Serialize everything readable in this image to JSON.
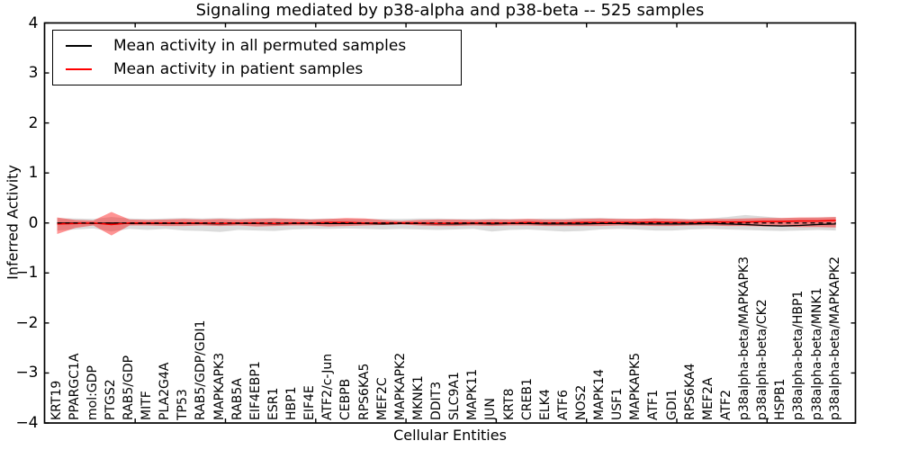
{
  "chart_data": {
    "type": "line",
    "title": "Signaling mediated by p38-alpha and p38-beta -- 525 samples",
    "xlabel": "Cellular Entities",
    "ylabel": "Inferred Activity",
    "ylim": [
      -4,
      4
    ],
    "ytick_values": [
      4,
      3,
      2,
      1,
      0,
      -1,
      -2,
      -3,
      -4
    ],
    "grid": false,
    "legend_position": "upper left",
    "legend": [
      {
        "label": "Mean activity in all permuted samples",
        "color": "#000000"
      },
      {
        "label": "Mean activity in patient samples",
        "color": "#ff0000"
      }
    ],
    "categories": [
      "KRT19",
      "PPARGC1A",
      "mol:GDP",
      "PTGS2",
      "RAB5/GDP",
      "MITF",
      "PLA2G4A",
      "TP53",
      "RAB5/GDP/GDI1",
      "MAPKAPK3",
      "RAB5A",
      "EIF4EBP1",
      "ESR1",
      "HBP1",
      "EIF4E",
      "ATF2/c-Jun",
      "CEBPB",
      "RPS6KA5",
      "MEF2C",
      "MAPKAPK2",
      "MKNK1",
      "DDIT3",
      "SLC9A1",
      "MAPK11",
      "JUN",
      "KRT8",
      "CREB1",
      "ELK4",
      "ATF6",
      "NOS2",
      "MAPK14",
      "USF1",
      "MAPKAPK5",
      "ATF1",
      "GDI1",
      "RPS6KA4",
      "MEF2A",
      "ATF2",
      "p38alpha-beta/MAPKAPK3",
      "p38alpha-beta/CK2",
      "HSPB1",
      "p38alpha-beta/HBP1",
      "p38alpha-beta/MNK1",
      "p38alpha-beta/MAPKAPK2"
    ],
    "bands": [
      {
        "name": "permuted-std-band",
        "color": "#888888",
        "opacity": 0.3,
        "upper": [
          0.1,
          0.09,
          0.08,
          0.12,
          0.09,
          0.08,
          0.09,
          0.1,
          0.09,
          0.1,
          0.09,
          0.1,
          0.1,
          0.09,
          0.08,
          0.09,
          0.08,
          0.08,
          0.08,
          0.08,
          0.09,
          0.09,
          0.08,
          0.08,
          0.09,
          0.08,
          0.08,
          0.09,
          0.09,
          0.1,
          0.1,
          0.09,
          0.08,
          0.09,
          0.09,
          0.08,
          0.09,
          0.12,
          0.16,
          0.13,
          0.1,
          0.1,
          0.11,
          0.12
        ],
        "lower": [
          -0.15,
          -0.13,
          -0.11,
          -0.17,
          -0.12,
          -0.14,
          -0.12,
          -0.15,
          -0.16,
          -0.18,
          -0.14,
          -0.15,
          -0.16,
          -0.13,
          -0.12,
          -0.12,
          -0.11,
          -0.12,
          -0.13,
          -0.12,
          -0.13,
          -0.14,
          -0.13,
          -0.12,
          -0.17,
          -0.14,
          -0.13,
          -0.15,
          -0.17,
          -0.16,
          -0.13,
          -0.12,
          -0.13,
          -0.15,
          -0.15,
          -0.13,
          -0.12,
          -0.13,
          -0.14,
          -0.15,
          -0.16,
          -0.15,
          -0.14,
          -0.15
        ]
      },
      {
        "name": "patient-std-band",
        "color": "#ff0000",
        "opacity": 0.42,
        "upper": [
          0.11,
          0.06,
          0.05,
          0.22,
          0.07,
          0.06,
          0.07,
          0.08,
          0.07,
          0.08,
          0.07,
          0.08,
          0.09,
          0.08,
          0.07,
          0.08,
          0.1,
          0.09,
          0.06,
          0.04,
          0.06,
          0.07,
          0.07,
          0.06,
          0.07,
          0.07,
          0.08,
          0.07,
          0.07,
          0.08,
          0.09,
          0.08,
          0.08,
          0.09,
          0.08,
          0.07,
          0.08,
          0.08,
          0.09,
          0.1,
          0.1,
          0.11,
          0.11,
          0.12
        ],
        "lower": [
          -0.22,
          -0.1,
          -0.05,
          -0.25,
          -0.05,
          -0.05,
          -0.06,
          -0.06,
          -0.05,
          -0.06,
          -0.05,
          -0.07,
          -0.06,
          -0.05,
          -0.05,
          -0.07,
          -0.06,
          -0.05,
          -0.04,
          -0.03,
          -0.05,
          -0.06,
          -0.06,
          -0.05,
          -0.06,
          -0.05,
          -0.05,
          -0.06,
          -0.06,
          -0.06,
          -0.06,
          -0.05,
          -0.05,
          -0.06,
          -0.06,
          -0.05,
          -0.05,
          -0.06,
          -0.06,
          -0.07,
          -0.07,
          -0.08,
          -0.08,
          -0.09
        ]
      }
    ],
    "lines": [
      {
        "name": "permuted-mean",
        "color": "#000000",
        "width": 1.3,
        "values": [
          0.0,
          0.0,
          -0.01,
          0.0,
          -0.01,
          -0.01,
          -0.01,
          -0.01,
          -0.01,
          -0.02,
          -0.01,
          -0.01,
          -0.02,
          -0.01,
          -0.01,
          -0.01,
          -0.01,
          -0.01,
          -0.02,
          -0.01,
          -0.01,
          -0.02,
          -0.02,
          -0.01,
          -0.02,
          -0.01,
          -0.01,
          -0.02,
          -0.02,
          -0.02,
          -0.01,
          -0.01,
          -0.02,
          -0.02,
          -0.02,
          -0.02,
          -0.01,
          -0.02,
          -0.03,
          -0.05,
          -0.06,
          -0.05,
          -0.03,
          -0.02
        ]
      },
      {
        "name": "patient-mean",
        "color": "#ff0000",
        "width": 1.6,
        "values": [
          -0.02,
          -0.01,
          0.0,
          -0.03,
          0.0,
          0.0,
          0.0,
          0.0,
          0.0,
          -0.01,
          0.0,
          0.0,
          -0.01,
          0.0,
          0.0,
          0.01,
          0.01,
          0.0,
          0.0,
          0.0,
          0.0,
          -0.01,
          0.0,
          0.0,
          0.0,
          0.0,
          0.01,
          0.0,
          0.0,
          0.01,
          0.01,
          0.01,
          0.01,
          0.02,
          0.01,
          0.01,
          0.02,
          0.02,
          0.02,
          0.03,
          0.03,
          0.04,
          0.04,
          0.05
        ]
      }
    ],
    "zero_line": {
      "value": 0,
      "style": "dashed",
      "color": "#000000"
    }
  }
}
